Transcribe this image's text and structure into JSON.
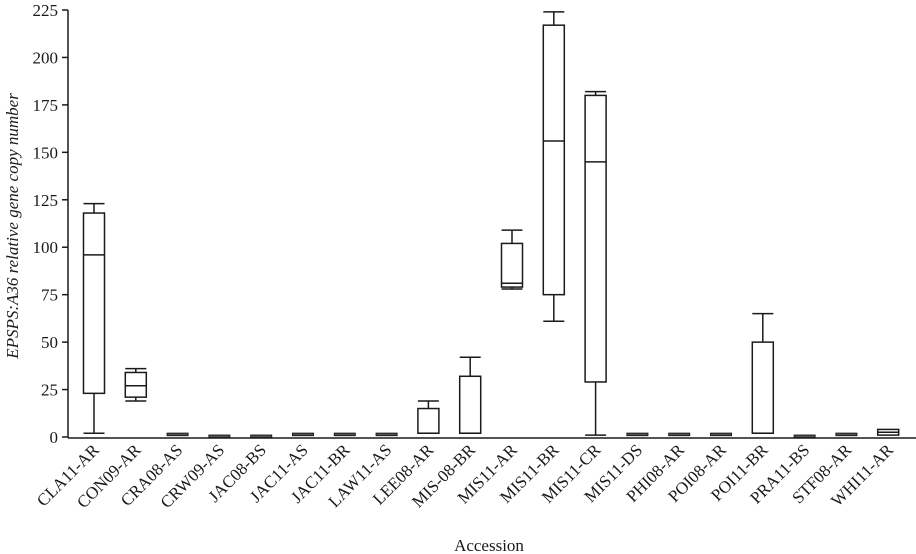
{
  "chart_data": {
    "type": "box",
    "title": "",
    "xlabel": "Accession",
    "ylabel": "EPSPS:A36 relative gene copy number",
    "ylim": [
      0,
      225
    ],
    "yticks": [
      0,
      25,
      50,
      75,
      100,
      125,
      150,
      175,
      200,
      225
    ],
    "grid": false,
    "legend": null,
    "categories": [
      "CLA11-AR",
      "CON09-AR",
      "CRA08-AS",
      "CRW09-AS",
      "JAC08-BS",
      "JAC11-AS",
      "JAC11-BR",
      "LAW11-AS",
      "LEE08-AR",
      "MIS-08-BR",
      "MIS11-AR",
      "MIS11-BR",
      "MIS11-CR",
      "MIS11-DS",
      "PHI08-AR",
      "POI08-AR",
      "POI11-BR",
      "PRA11-BS",
      "STF08-AR",
      "WHI11-AR"
    ],
    "boxes": [
      {
        "name": "CLA11-AR",
        "whisker_low": 2,
        "q1": 23,
        "median": 96,
        "q3": 118,
        "whisker_high": 123
      },
      {
        "name": "CON09-AR",
        "whisker_low": 19,
        "q1": 21,
        "median": 27,
        "q3": 34,
        "whisker_high": 36
      },
      {
        "name": "CRA08-AS",
        "whisker_low": 0.5,
        "q1": 0.5,
        "median": 1,
        "q3": 1.5,
        "whisker_high": 1.5
      },
      {
        "name": "CRW09-AS",
        "whisker_low": 0.5,
        "q1": 0.5,
        "median": 0.5,
        "q3": 0.5,
        "whisker_high": 0.5
      },
      {
        "name": "JAC08-BS",
        "whisker_low": 0.5,
        "q1": 0.5,
        "median": 0.5,
        "q3": 0.5,
        "whisker_high": 0.5
      },
      {
        "name": "JAC11-AS",
        "whisker_low": 0.5,
        "q1": 0.8,
        "median": 1,
        "q3": 1.5,
        "whisker_high": 1.5
      },
      {
        "name": "JAC11-BR",
        "whisker_low": 0.5,
        "q1": 0.8,
        "median": 1,
        "q3": 1.5,
        "whisker_high": 1.5
      },
      {
        "name": "LAW11-AS",
        "whisker_low": 0.5,
        "q1": 0.8,
        "median": 1,
        "q3": 1.5,
        "whisker_high": 1.5
      },
      {
        "name": "LEE08-AR",
        "whisker_low": 2,
        "q1": 2,
        "median": 2,
        "q3": 15,
        "whisker_high": 19
      },
      {
        "name": "MIS-08-BR",
        "whisker_low": 2,
        "q1": 2,
        "median": 2,
        "q3": 32,
        "whisker_high": 42
      },
      {
        "name": "MIS11-AR",
        "whisker_low": 78,
        "q1": 79,
        "median": 81,
        "q3": 102,
        "whisker_high": 109
      },
      {
        "name": "MIS11-BR",
        "whisker_low": 61,
        "q1": 75,
        "median": 156,
        "q3": 217,
        "whisker_high": 224
      },
      {
        "name": "MIS11-CR",
        "whisker_low": 1,
        "q1": 29,
        "median": 145,
        "q3": 180,
        "whisker_high": 182
      },
      {
        "name": "MIS11-DS",
        "whisker_low": 0.5,
        "q1": 0.8,
        "median": 1,
        "q3": 1.5,
        "whisker_high": 1.5
      },
      {
        "name": "PHI08-AR",
        "whisker_low": 0.5,
        "q1": 0.8,
        "median": 1,
        "q3": 1.5,
        "whisker_high": 1.5
      },
      {
        "name": "POI08-AR",
        "whisker_low": 1.5,
        "q1": 1.5,
        "median": 1.5,
        "q3": 1.5,
        "whisker_high": 1.5
      },
      {
        "name": "POI11-BR",
        "whisker_low": 2,
        "q1": 2,
        "median": 2,
        "q3": 50,
        "whisker_high": 65
      },
      {
        "name": "PRA11-BS",
        "whisker_low": 0.5,
        "q1": 0.5,
        "median": 0.5,
        "q3": 0.5,
        "whisker_high": 0.5
      },
      {
        "name": "STF08-AR",
        "whisker_low": 1.5,
        "q1": 1.5,
        "median": 1.5,
        "q3": 1.5,
        "whisker_high": 1.5
      },
      {
        "name": "WHI11-AR",
        "whisker_low": 1,
        "q1": 1,
        "median": 2.5,
        "q3": 4,
        "whisker_high": 4
      }
    ]
  }
}
